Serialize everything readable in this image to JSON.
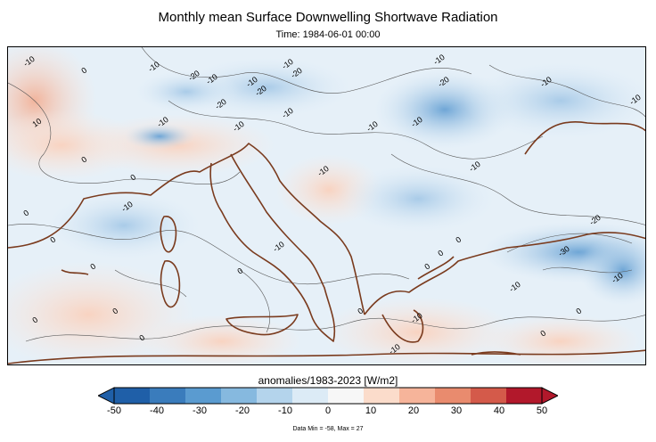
{
  "title": "Monthly mean Surface Downwelling Shortwave Radiation",
  "subtitle": "Time: 1984-06-01 00:00",
  "colorbar": {
    "label": "anomalies/1983-2023 [W/m2]",
    "min": -50,
    "max": 50,
    "ticks": [
      "-50",
      "-40",
      "-30",
      "-20",
      "-10",
      "0",
      "10",
      "20",
      "30",
      "40",
      "50"
    ],
    "colors": [
      "#1f5fa8",
      "#3a7cbc",
      "#5a9bd0",
      "#86b9df",
      "#b4d4ec",
      "#dcebf6",
      "#f7f7f7",
      "#fbdccb",
      "#f6b49a",
      "#e98b6e",
      "#d45a4a",
      "#b2182b"
    ]
  },
  "data_info": "Data Min = -58, Max = 27",
  "contour_labels": [
    "-10",
    "0",
    "-10",
    "-20",
    "-10",
    "-10",
    "-20",
    "-10",
    "-20",
    "-20",
    "-10",
    "-10",
    "-20",
    "-10",
    "-10",
    "-10",
    "-10",
    "0",
    "10",
    "-10",
    "0",
    "-10",
    "0",
    "0",
    "0",
    "-10",
    "0",
    "-10",
    "0",
    "0",
    "-10",
    "-20",
    "-30",
    "-10",
    "-10",
    "0",
    "-10",
    "-10",
    "0",
    "0",
    "0",
    "0",
    "0",
    "0",
    "-10"
  ]
}
